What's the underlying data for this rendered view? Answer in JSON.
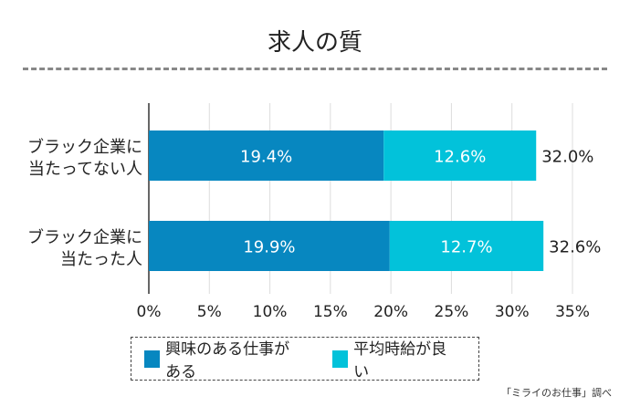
{
  "chart_data": {
    "type": "bar",
    "stacked": true,
    "orientation": "horizontal",
    "title": "求人の質",
    "categories": [
      "ブラック企業に\n当たってない人",
      "ブラック企業に\n当たった人"
    ],
    "category_lines": [
      [
        "ブラック企業に",
        "当たってない人"
      ],
      [
        "ブラック企業に",
        "当たった人"
      ]
    ],
    "series": [
      {
        "name": "興味のある仕事がある",
        "values": [
          19.4,
          19.9
        ],
        "labels": [
          "19.4%",
          "19.9%"
        ],
        "color": "#0787c0"
      },
      {
        "name": "平均時給が良い",
        "values": [
          12.6,
          12.7
        ],
        "labels": [
          "12.6%",
          "12.7%"
        ],
        "color": "#02c2da"
      }
    ],
    "totals": [
      "32.0%",
      "32.6%"
    ],
    "xlim": [
      0,
      35
    ],
    "xticks": [
      "0%",
      "5%",
      "10%",
      "15%",
      "20%",
      "25%",
      "30%",
      "35%"
    ],
    "grid": true,
    "legend_position": "bottom"
  },
  "source": "「ミライのお仕事」調べ"
}
